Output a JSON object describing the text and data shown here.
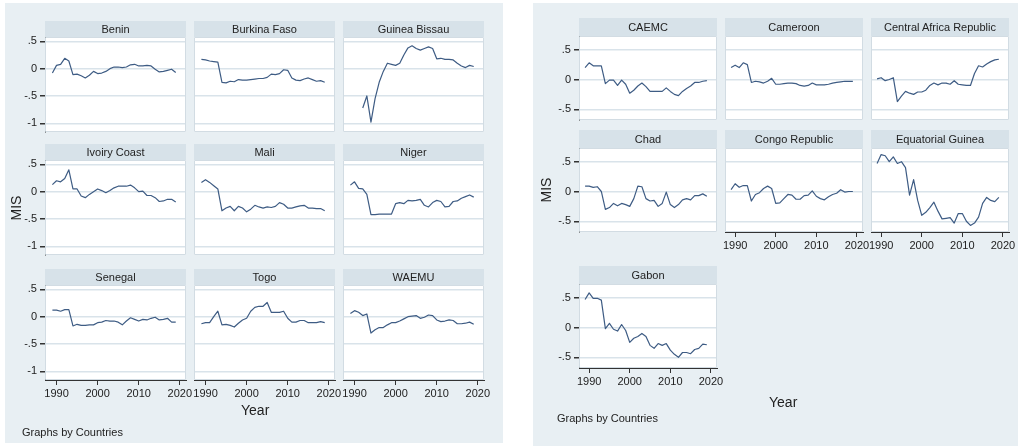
{
  "chart_data": [
    {
      "type": "line",
      "title": "Benin",
      "x": [
        1989,
        1990,
        1991,
        1992,
        1993,
        1994,
        1995,
        1996,
        1997,
        1998,
        1999,
        2000,
        2001,
        2002,
        2003,
        2004,
        2005,
        2006,
        2007,
        2008,
        2009,
        2010,
        2011,
        2012,
        2013,
        2014,
        2015,
        2016,
        2017,
        2018,
        2019
      ],
      "xlim": [
        1987.2,
        2021.5
      ],
      "xticks": [
        1990,
        2000,
        2010,
        2020
      ],
      "ylim": [
        -1.16,
        0.58
      ],
      "yticks": [
        {
          "value": -1,
          "label": "-1"
        },
        {
          "value": -0.5,
          "label": "-.5"
        },
        {
          "value": 0,
          "label": "0"
        },
        {
          "value": 0.5,
          "label": ".5"
        }
      ],
      "grid": "y",
      "tick_labels": "y",
      "series": [
        {
          "color": "#3e5c84",
          "values": [
            -0.08,
            0.06,
            0.08,
            0.19,
            0.14,
            -0.11,
            -0.1,
            -0.13,
            -0.17,
            -0.12,
            -0.05,
            -0.09,
            -0.08,
            -0.05,
            0,
            0.03,
            0.03,
            0.02,
            0.03,
            0.07,
            0.08,
            0.05,
            0.05,
            0.06,
            0.05,
            -0.01,
            -0.06,
            -0.05,
            -0.03,
            -0.01,
            -0.07
          ]
        }
      ]
    },
    {
      "type": "line",
      "title": "Burkina Faso",
      "x": [
        1989,
        1990,
        1991,
        1992,
        1993,
        1994,
        1995,
        1996,
        1997,
        1998,
        1999,
        2000,
        2001,
        2002,
        2003,
        2004,
        2005,
        2006,
        2007,
        2008,
        2009,
        2010,
        2011,
        2012,
        2013,
        2014,
        2015,
        2016,
        2017,
        2018,
        2019
      ],
      "xlim": [
        1987.2,
        2021.5
      ],
      "xticks": [
        1990,
        2000,
        2010,
        2020
      ],
      "ylim": [
        -1.16,
        0.58
      ],
      "yticks": [
        {
          "value": -1,
          "label": null
        },
        {
          "value": -0.5,
          "label": null
        },
        {
          "value": 0,
          "label": null
        },
        {
          "value": 0.5,
          "label": null
        }
      ],
      "grid": "y",
      "tick_labels": false,
      "series": [
        {
          "color": "#3e5c84",
          "values": [
            0.17,
            0.16,
            0.14,
            0.13,
            0.12,
            -0.25,
            -0.26,
            -0.23,
            -0.24,
            -0.2,
            -0.21,
            -0.21,
            -0.2,
            -0.19,
            -0.18,
            -0.18,
            -0.16,
            -0.1,
            -0.11,
            -0.09,
            -0.02,
            -0.03,
            -0.17,
            -0.21,
            -0.22,
            -0.19,
            -0.17,
            -0.2,
            -0.23,
            -0.22,
            -0.25
          ]
        }
      ]
    },
    {
      "type": "line",
      "title": "Guinea Bissau",
      "xlim": [
        1987.2,
        2021.5
      ],
      "xticks": [
        1990,
        2000,
        2010,
        2020
      ],
      "ylim": [
        -1.16,
        0.58
      ],
      "yticks": [
        {
          "value": -1,
          "label": null
        },
        {
          "value": -0.5,
          "label": null
        },
        {
          "value": 0,
          "label": null
        },
        {
          "value": 0.5,
          "label": null
        }
      ],
      "grid": "y",
      "tick_labels": false,
      "series": [
        {
          "color": "#3e5c84",
          "x": [
            1992,
            1993,
            1994,
            1995,
            1996,
            1997,
            1998,
            1999,
            2000,
            2001,
            2002,
            2003,
            2004,
            2005,
            2006,
            2007,
            2008,
            2009,
            2010,
            2011,
            2012,
            2013,
            2014,
            2015,
            2016,
            2017,
            2018,
            2019
          ],
          "values": [
            -0.72,
            -0.5,
            -0.98,
            -0.55,
            -0.25,
            -0.05,
            0.1,
            0.08,
            0.06,
            0.1,
            0.25,
            0.38,
            0.42,
            0.37,
            0.34,
            0.37,
            0.4,
            0.37,
            0.18,
            0.19,
            0.17,
            0.17,
            0.16,
            0.1,
            0.05,
            0.02,
            0.06,
            0.04
          ]
        }
      ]
    },
    {
      "type": "line",
      "title": "Ivoiry Coast",
      "ylabel": "MIS",
      "x": [
        1989,
        1990,
        1991,
        1992,
        1993,
        1994,
        1995,
        1996,
        1997,
        1998,
        1999,
        2000,
        2001,
        2002,
        2003,
        2004,
        2005,
        2006,
        2007,
        2008,
        2009,
        2010,
        2011,
        2012,
        2013,
        2014,
        2015,
        2016,
        2017,
        2018,
        2019
      ],
      "xlim": [
        1987.2,
        2021.5
      ],
      "xticks": [
        1990,
        2000,
        2010,
        2020
      ],
      "ylim": [
        -1.16,
        0.58
      ],
      "yticks": [
        {
          "value": -1,
          "label": "-1"
        },
        {
          "value": -0.5,
          "label": "-.5"
        },
        {
          "value": 0,
          "label": "0"
        },
        {
          "value": 0.5,
          "label": ".5"
        }
      ],
      "grid": "y",
      "tick_labels": "y",
      "series": [
        {
          "color": "#3e5c84",
          "values": [
            0.13,
            0.2,
            0.18,
            0.24,
            0.4,
            0.05,
            0.05,
            -0.08,
            -0.11,
            -0.05,
            0,
            0.05,
            0.02,
            -0.02,
            0.02,
            0.07,
            0.1,
            0.1,
            0.1,
            0.12,
            0.07,
            0,
            0.01,
            -0.07,
            -0.07,
            -0.11,
            -0.18,
            -0.17,
            -0.14,
            -0.14,
            -0.19
          ]
        }
      ]
    },
    {
      "type": "line",
      "title": "Mali",
      "x": [
        1989,
        1990,
        1991,
        1992,
        1993,
        1994,
        1995,
        1996,
        1997,
        1998,
        1999,
        2000,
        2001,
        2002,
        2003,
        2004,
        2005,
        2006,
        2007,
        2008,
        2009,
        2010,
        2011,
        2012,
        2013,
        2014,
        2015,
        2016,
        2017,
        2018,
        2019
      ],
      "xlim": [
        1987.2,
        2021.5
      ],
      "xticks": [
        1990,
        2000,
        2010,
        2020
      ],
      "ylim": [
        -1.16,
        0.58
      ],
      "yticks": [
        {
          "value": -1,
          "label": null
        },
        {
          "value": -0.5,
          "label": null
        },
        {
          "value": 0,
          "label": null
        },
        {
          "value": 0.5,
          "label": null
        }
      ],
      "grid": "y",
      "tick_labels": false,
      "series": [
        {
          "color": "#3e5c84",
          "values": [
            0.17,
            0.22,
            0.17,
            0.11,
            0.05,
            -0.35,
            -0.3,
            -0.27,
            -0.35,
            -0.27,
            -0.3,
            -0.37,
            -0.32,
            -0.25,
            -0.28,
            -0.3,
            -0.28,
            -0.29,
            -0.27,
            -0.2,
            -0.23,
            -0.3,
            -0.3,
            -0.28,
            -0.26,
            -0.25,
            -0.3,
            -0.3,
            -0.31,
            -0.31,
            -0.35
          ]
        }
      ]
    },
    {
      "type": "line",
      "title": "Niger",
      "x": [
        1989,
        1990,
        1991,
        1992,
        1993,
        1994,
        1995,
        1996,
        1997,
        1998,
        1999,
        2000,
        2001,
        2002,
        2003,
        2004,
        2005,
        2006,
        2007,
        2008,
        2009,
        2010,
        2011,
        2012,
        2013,
        2014,
        2015,
        2016,
        2017,
        2018,
        2019
      ],
      "xlim": [
        1987.2,
        2021.5
      ],
      "xticks": [
        1990,
        2000,
        2010,
        2020
      ],
      "ylim": [
        -1.16,
        0.58
      ],
      "yticks": [
        {
          "value": -1,
          "label": null
        },
        {
          "value": -0.5,
          "label": null
        },
        {
          "value": 0,
          "label": null
        },
        {
          "value": 0.5,
          "label": null
        }
      ],
      "grid": "y",
      "tick_labels": false,
      "series": [
        {
          "color": "#3e5c84",
          "values": [
            0.12,
            0.18,
            0.06,
            0.05,
            -0.05,
            -0.42,
            -0.42,
            -0.41,
            -0.41,
            -0.41,
            -0.41,
            -0.22,
            -0.2,
            -0.22,
            -0.16,
            -0.17,
            -0.16,
            -0.14,
            -0.25,
            -0.28,
            -0.2,
            -0.16,
            -0.18,
            -0.28,
            -0.27,
            -0.18,
            -0.17,
            -0.12,
            -0.09,
            -0.06,
            -0.1
          ]
        }
      ]
    },
    {
      "type": "line",
      "title": "Senegal",
      "annotations": [
        "Graphs by Countries"
      ],
      "x": [
        1989,
        1990,
        1991,
        1992,
        1993,
        1994,
        1995,
        1996,
        1997,
        1998,
        1999,
        2000,
        2001,
        2002,
        2003,
        2004,
        2005,
        2006,
        2007,
        2008,
        2009,
        2010,
        2011,
        2012,
        2013,
        2014,
        2015,
        2016,
        2017,
        2018,
        2019
      ],
      "xlim": [
        1987.2,
        2021.5
      ],
      "xticks": [
        1990,
        2000,
        2010,
        2020
      ],
      "ylim": [
        -1.16,
        0.58
      ],
      "yticks": [
        {
          "value": -1,
          "label": "-1"
        },
        {
          "value": -0.5,
          "label": "-.5"
        },
        {
          "value": 0,
          "label": "0"
        },
        {
          "value": 0.5,
          "label": ".5"
        }
      ],
      "grid": "y",
      "series": [
        {
          "color": "#3e5c84",
          "values": [
            0.12,
            0.12,
            0.1,
            0.13,
            0.13,
            -0.17,
            -0.14,
            -0.16,
            -0.16,
            -0.15,
            -0.15,
            -0.11,
            -0.1,
            -0.07,
            -0.08,
            -0.08,
            -0.1,
            -0.15,
            -0.08,
            -0.02,
            -0.05,
            -0.08,
            -0.05,
            -0.06,
            -0.03,
            -0.01,
            -0.06,
            -0.05,
            -0.03,
            -0.1,
            -0.1
          ]
        }
      ]
    },
    {
      "type": "line",
      "title": "Togo",
      "xlabel": "Year",
      "x": [
        1989,
        1990,
        1991,
        1992,
        1993,
        1994,
        1995,
        1996,
        1997,
        1998,
        1999,
        2000,
        2001,
        2002,
        2003,
        2004,
        2005,
        2006,
        2007,
        2008,
        2009,
        2010,
        2011,
        2012,
        2013,
        2014,
        2015,
        2016,
        2017,
        2018,
        2019
      ],
      "xlim": [
        1987.2,
        2021.5
      ],
      "xticks": [
        1990,
        2000,
        2010,
        2020
      ],
      "ylim": [
        -1.16,
        0.58
      ],
      "yticks": [
        {
          "value": -1,
          "label": null
        },
        {
          "value": -0.5,
          "label": null
        },
        {
          "value": 0,
          "label": null
        },
        {
          "value": 0.5,
          "label": null
        }
      ],
      "grid": "y",
      "tick_labels": "x",
      "series": [
        {
          "color": "#3e5c84",
          "values": [
            -0.13,
            -0.11,
            -0.11,
            0,
            0.1,
            -0.15,
            -0.14,
            -0.16,
            -0.19,
            -0.12,
            -0.06,
            -0.03,
            0.1,
            0.17,
            0.19,
            0.19,
            0.26,
            0.08,
            0.08,
            0.08,
            0.1,
            -0.03,
            -0.1,
            -0.1,
            -0.07,
            -0.07,
            -0.11,
            -0.11,
            -0.11,
            -0.09,
            -0.11
          ]
        }
      ]
    },
    {
      "type": "line",
      "title": "WAEMU",
      "x": [
        1989,
        1990,
        1991,
        1992,
        1993,
        1994,
        1995,
        1996,
        1997,
        1998,
        1999,
        2000,
        2001,
        2002,
        2003,
        2004,
        2005,
        2006,
        2007,
        2008,
        2009,
        2010,
        2011,
        2012,
        2013,
        2014,
        2015,
        2016,
        2017,
        2018,
        2019
      ],
      "xlim": [
        1987.2,
        2021.5
      ],
      "xticks": [
        1990,
        2000,
        2010,
        2020
      ],
      "ylim": [
        -1.16,
        0.58
      ],
      "yticks": [
        {
          "value": -1,
          "label": null
        },
        {
          "value": -0.5,
          "label": null
        },
        {
          "value": 0,
          "label": null
        },
        {
          "value": 0.5,
          "label": null
        }
      ],
      "grid": "y",
      "tick_labels": "x",
      "series": [
        {
          "color": "#3e5c84",
          "values": [
            0.06,
            0.11,
            0.08,
            0.02,
            0.05,
            -0.3,
            -0.24,
            -0.2,
            -0.2,
            -0.15,
            -0.11,
            -0.11,
            -0.08,
            -0.04,
            0,
            0.01,
            0.02,
            -0.03,
            -0.01,
            0.03,
            0.02,
            -0.06,
            -0.09,
            -0.08,
            -0.06,
            -0.07,
            -0.13,
            -0.13,
            -0.12,
            -0.1,
            -0.14
          ]
        }
      ]
    },
    {
      "type": "line",
      "title": "CAEMC",
      "x": [
        1989,
        1990,
        1991,
        1992,
        1993,
        1994,
        1995,
        1996,
        1997,
        1998,
        1999,
        2000,
        2001,
        2002,
        2003,
        2004,
        2005,
        2006,
        2007,
        2008,
        2009,
        2010,
        2011,
        2012,
        2013,
        2014,
        2015,
        2016,
        2017,
        2018,
        2019
      ],
      "xlim": [
        1987.5,
        2021.5
      ],
      "xticks": [
        1990,
        2000,
        2010,
        2020
      ],
      "ylim": [
        -0.68,
        0.73
      ],
      "yticks": [
        {
          "value": -0.5,
          "label": "-.5"
        },
        {
          "value": 0,
          "label": "0"
        },
        {
          "value": 0.5,
          "label": ".5"
        }
      ],
      "grid": "y",
      "tick_labels": "y",
      "series": [
        {
          "color": "#3e5c84",
          "values": [
            0.2,
            0.28,
            0.23,
            0.23,
            0.23,
            -0.07,
            -0.01,
            -0.01,
            -0.1,
            -0.01,
            -0.08,
            -0.23,
            -0.18,
            -0.11,
            -0.06,
            -0.12,
            -0.2,
            -0.2,
            -0.2,
            -0.2,
            -0.14,
            -0.2,
            -0.25,
            -0.27,
            -0.2,
            -0.15,
            -0.11,
            -0.05,
            -0.05,
            -0.03,
            -0.02
          ]
        }
      ]
    },
    {
      "type": "line",
      "title": "Cameroon",
      "x": [
        1989,
        1990,
        1991,
        1992,
        1993,
        1994,
        1995,
        1996,
        1997,
        1998,
        1999,
        2000,
        2001,
        2002,
        2003,
        2004,
        2005,
        2006,
        2007,
        2008,
        2009,
        2010,
        2011,
        2012,
        2013,
        2014,
        2015,
        2016,
        2017,
        2018,
        2019
      ],
      "xlim": [
        1987.5,
        2021.5
      ],
      "xticks": [
        1990,
        2000,
        2010,
        2020
      ],
      "ylim": [
        -0.68,
        0.73
      ],
      "yticks": [
        {
          "value": -0.5,
          "label": null
        },
        {
          "value": 0,
          "label": null
        },
        {
          "value": 0.5,
          "label": null
        }
      ],
      "grid": "y",
      "tick_labels": false,
      "series": [
        {
          "color": "#3e5c84",
          "values": [
            0.2,
            0.24,
            0.2,
            0.28,
            0.25,
            -0.05,
            -0.03,
            -0.04,
            -0.06,
            -0.03,
            0.02,
            -0.08,
            -0.08,
            -0.07,
            -0.06,
            -0.06,
            -0.07,
            -0.1,
            -0.11,
            -0.1,
            -0.06,
            -0.09,
            -0.09,
            -0.09,
            -0.08,
            -0.06,
            -0.05,
            -0.04,
            -0.03,
            -0.03,
            -0.03
          ]
        }
      ]
    },
    {
      "type": "line",
      "title": "Central Africa Republic",
      "x": [
        1989,
        1990,
        1991,
        1992,
        1993,
        1994,
        1995,
        1996,
        1997,
        1998,
        1999,
        2000,
        2001,
        2002,
        2003,
        2004,
        2005,
        2006,
        2007,
        2008,
        2009,
        2010,
        2011,
        2012,
        2013,
        2014,
        2015,
        2016,
        2017,
        2018,
        2019
      ],
      "xlim": [
        1987.5,
        2021.5
      ],
      "xticks": [
        1990,
        2000,
        2010,
        2020
      ],
      "ylim": [
        -0.68,
        0.73
      ],
      "yticks": [
        {
          "value": -0.5,
          "label": null
        },
        {
          "value": 0,
          "label": null
        },
        {
          "value": 0.5,
          "label": null
        }
      ],
      "grid": "y",
      "tick_labels": false,
      "series": [
        {
          "color": "#3e5c84",
          "values": [
            0.01,
            0.03,
            -0.02,
            0,
            0.03,
            -0.37,
            -0.28,
            -0.2,
            -0.23,
            -0.25,
            -0.21,
            -0.21,
            -0.18,
            -0.1,
            -0.06,
            -0.09,
            -0.06,
            -0.06,
            -0.08,
            -0.02,
            -0.08,
            -0.09,
            -0.1,
            -0.1,
            0.1,
            0.23,
            0.21,
            0.26,
            0.3,
            0.33,
            0.34
          ]
        }
      ]
    },
    {
      "type": "line",
      "title": "Chad",
      "ylabel": "MIS",
      "x": [
        1989,
        1990,
        1991,
        1992,
        1993,
        1994,
        1995,
        1996,
        1997,
        1998,
        1999,
        2000,
        2001,
        2002,
        2003,
        2004,
        2005,
        2006,
        2007,
        2008,
        2009,
        2010,
        2011,
        2012,
        2013,
        2014,
        2015,
        2016,
        2017,
        2018,
        2019
      ],
      "xlim": [
        1987.5,
        2021.5
      ],
      "xticks": [
        1990,
        2000,
        2010,
        2020
      ],
      "ylim": [
        -0.68,
        0.73
      ],
      "yticks": [
        {
          "value": -0.5,
          "label": "-.5"
        },
        {
          "value": 0,
          "label": "0"
        },
        {
          "value": 0.5,
          "label": ".5"
        }
      ],
      "grid": "y",
      "tick_labels": "y",
      "series": [
        {
          "color": "#3e5c84",
          "values": [
            0.09,
            0.09,
            0.07,
            0.08,
            0,
            -0.3,
            -0.27,
            -0.2,
            -0.24,
            -0.2,
            -0.22,
            -0.25,
            -0.12,
            0.09,
            0.08,
            -0.12,
            -0.16,
            -0.15,
            -0.25,
            -0.2,
            -0.01,
            -0.22,
            -0.27,
            -0.22,
            -0.14,
            -0.12,
            -0.14,
            -0.07,
            -0.07,
            -0.04,
            -0.08
          ]
        }
      ]
    },
    {
      "type": "line",
      "title": "Congo Republic",
      "x": [
        1989,
        1990,
        1991,
        1992,
        1993,
        1994,
        1995,
        1996,
        1997,
        1998,
        1999,
        2000,
        2001,
        2002,
        2003,
        2004,
        2005,
        2006,
        2007,
        2008,
        2009,
        2010,
        2011,
        2012,
        2013,
        2014,
        2015,
        2016,
        2017,
        2018,
        2019
      ],
      "xlim": [
        1987.5,
        2021.5
      ],
      "xticks": [
        1990,
        2000,
        2010,
        2020
      ],
      "ylim": [
        -0.68,
        0.73
      ],
      "yticks": [
        {
          "value": -0.5,
          "label": null
        },
        {
          "value": 0,
          "label": null
        },
        {
          "value": 0.5,
          "label": null
        }
      ],
      "grid": "y",
      "tick_labels": "x",
      "series": [
        {
          "color": "#3e5c84",
          "values": [
            0.03,
            0.13,
            0.07,
            0.1,
            0.1,
            -0.16,
            -0.05,
            -0.02,
            0.05,
            0.09,
            0.05,
            -0.2,
            -0.19,
            -0.12,
            -0.05,
            -0.06,
            -0.13,
            -0.13,
            -0.07,
            -0.06,
            0.01,
            -0.08,
            -0.12,
            -0.14,
            -0.09,
            -0.05,
            -0.03,
            0.03,
            -0.01,
            0,
            0
          ]
        }
      ]
    },
    {
      "type": "line",
      "title": "Equatorial Guinea",
      "x": [
        1989,
        1990,
        1991,
        1992,
        1993,
        1994,
        1995,
        1996,
        1997,
        1998,
        1999,
        2000,
        2001,
        2002,
        2003,
        2004,
        2005,
        2006,
        2007,
        2008,
        2009,
        2010,
        2011,
        2012,
        2013,
        2014,
        2015,
        2016,
        2017,
        2018,
        2019
      ],
      "xlim": [
        1987.5,
        2021.5
      ],
      "xticks": [
        1990,
        2000,
        2010,
        2020
      ],
      "ylim": [
        -0.68,
        0.73
      ],
      "yticks": [
        {
          "value": -0.5,
          "label": null
        },
        {
          "value": 0,
          "label": null
        },
        {
          "value": 0.5,
          "label": null
        }
      ],
      "grid": "y",
      "tick_labels": "x",
      "series": [
        {
          "color": "#3e5c84",
          "values": [
            0.47,
            0.62,
            0.6,
            0.5,
            0.58,
            0.47,
            0.5,
            0.4,
            -0.06,
            0.2,
            -0.15,
            -0.4,
            -0.35,
            -0.27,
            -0.18,
            -0.33,
            -0.46,
            -0.45,
            -0.44,
            -0.53,
            -0.37,
            -0.37,
            -0.5,
            -0.57,
            -0.53,
            -0.43,
            -0.2,
            -0.1,
            -0.15,
            -0.17,
            -0.1
          ]
        }
      ]
    },
    {
      "type": "line",
      "title": "Gabon",
      "xlabel": "Year",
      "annotations": [
        "Graphs by Countries"
      ],
      "x": [
        1989,
        1990,
        1991,
        1992,
        1993,
        1994,
        1995,
        1996,
        1997,
        1998,
        1999,
        2000,
        2001,
        2002,
        2003,
        2004,
        2005,
        2006,
        2007,
        2008,
        2009,
        2010,
        2011,
        2012,
        2013,
        2014,
        2015,
        2016,
        2017,
        2018,
        2019
      ],
      "xlim": [
        1987.5,
        2021.5
      ],
      "xticks": [
        1990,
        2000,
        2010,
        2020
      ],
      "ylim": [
        -0.68,
        0.73
      ],
      "yticks": [
        {
          "value": -0.5,
          "label": "-.5"
        },
        {
          "value": 0,
          "label": "0"
        },
        {
          "value": 0.5,
          "label": ".5"
        }
      ],
      "grid": "y",
      "series": [
        {
          "color": "#3e5c84",
          "values": [
            0.47,
            0.58,
            0.49,
            0.49,
            0.46,
            -0.02,
            0.07,
            -0.03,
            -0.06,
            0.05,
            -0.05,
            -0.25,
            -0.18,
            -0.15,
            -0.1,
            -0.15,
            -0.3,
            -0.35,
            -0.27,
            -0.3,
            -0.27,
            -0.38,
            -0.45,
            -0.5,
            -0.42,
            -0.42,
            -0.44,
            -0.37,
            -0.35,
            -0.28,
            -0.29
          ]
        }
      ]
    }
  ]
}
